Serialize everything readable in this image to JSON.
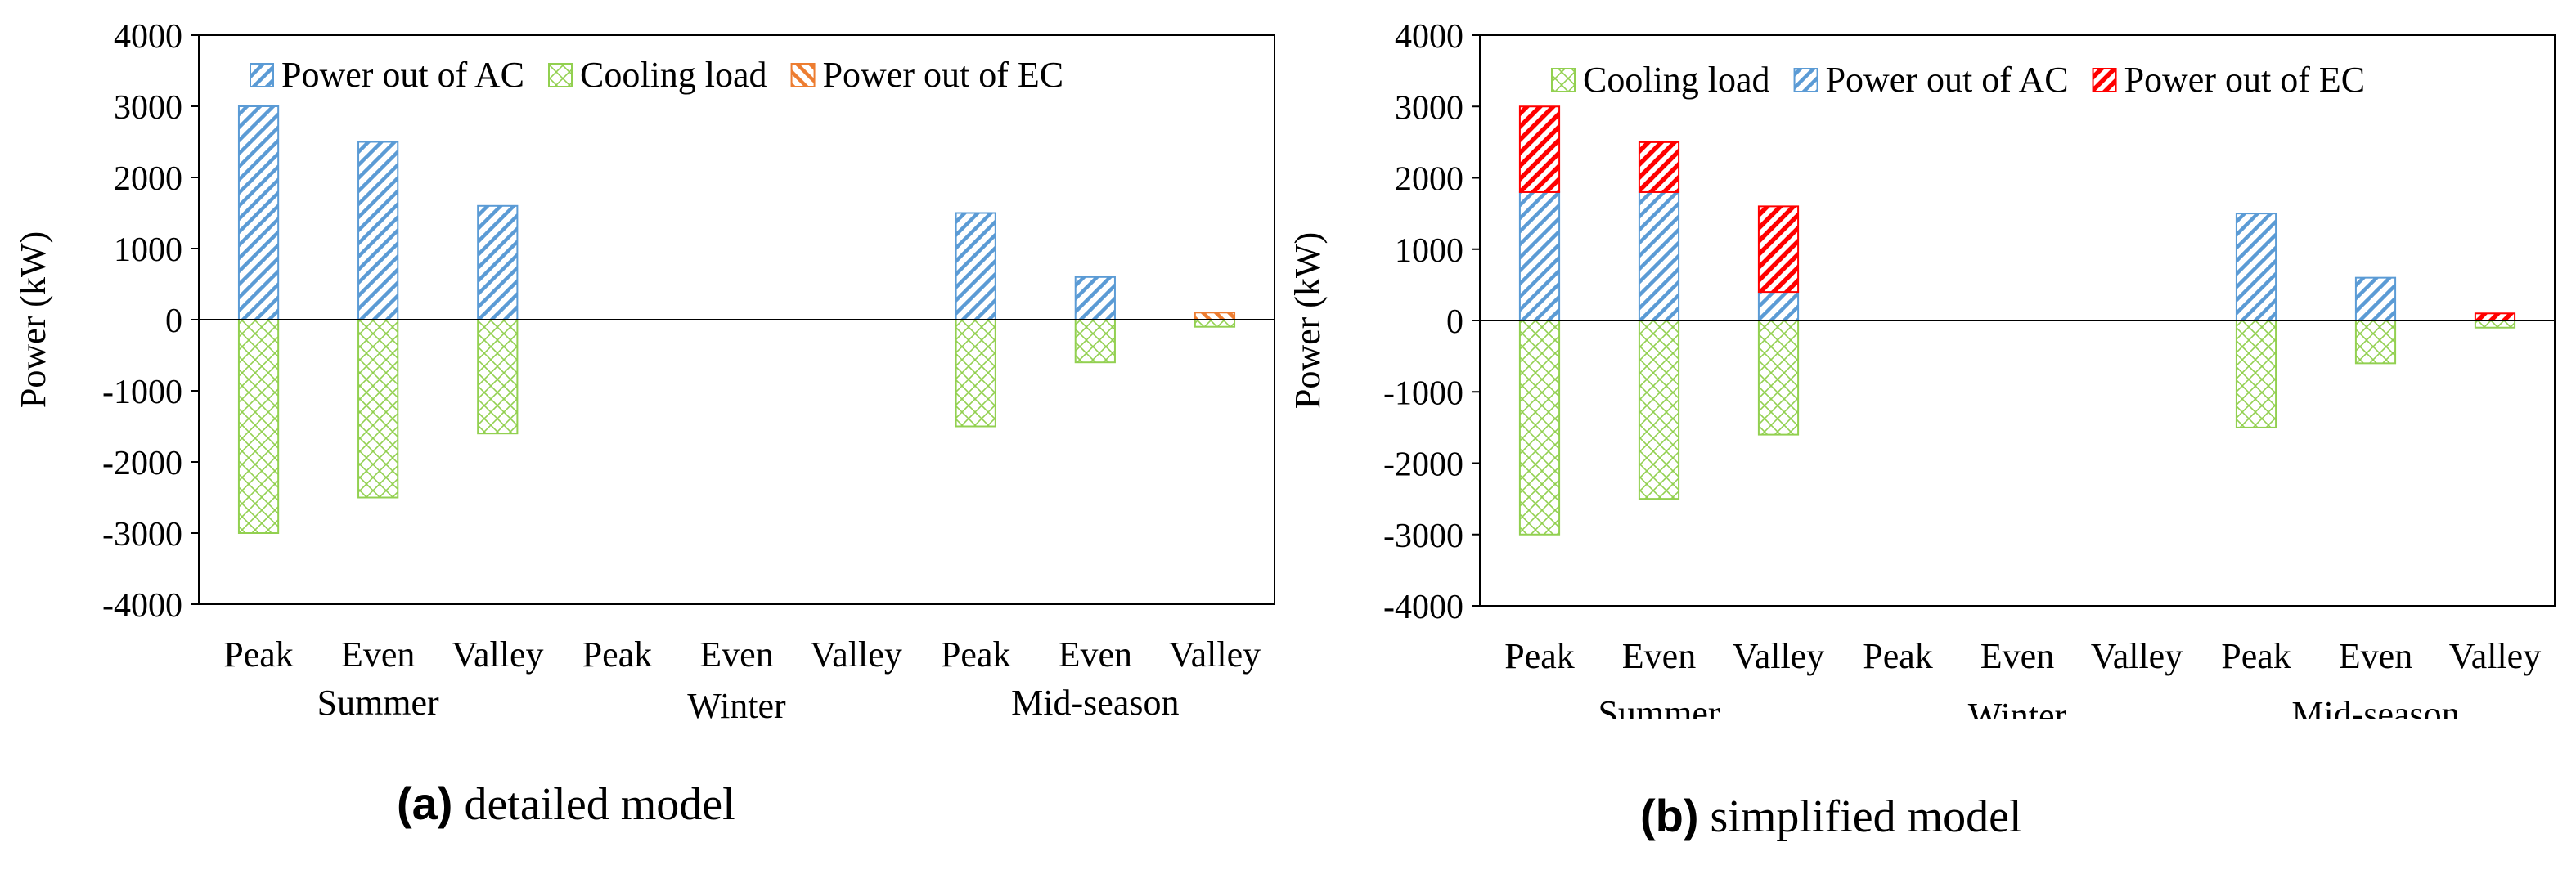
{
  "colors": {
    "power_out_of_ac": "#5b9bd5",
    "cooling_load": "#92d050",
    "power_out_of_ec_detailed": "#ed7d31",
    "power_out_of_ec_simplified": "#ff0000",
    "axis": "#000000"
  },
  "chart_data": [
    {
      "id": "a",
      "type": "bar",
      "stacked": true,
      "caption_letter": "(a)",
      "caption_text": "detailed model",
      "ylabel": "Power (kW)",
      "xlabel": "",
      "ylim": [
        -4000,
        4000
      ],
      "yticks": [
        4000,
        3000,
        2000,
        1000,
        0,
        -1000,
        -2000,
        -3000,
        -4000
      ],
      "grid": false,
      "legend_position": "top",
      "categories": [
        "Peak",
        "Even",
        "Valley",
        "Peak",
        "Even",
        "Valley",
        "Peak",
        "Even",
        "Valley"
      ],
      "groups": [
        "Summer",
        "Winter",
        "Mid-season"
      ],
      "legend": [
        "Power out of AC",
        "Cooling load",
        "Power out of EC"
      ],
      "series": [
        {
          "name": "Power out of AC",
          "pattern": "diag",
          "color_key": "power_out_of_ac",
          "values": [
            3000,
            2500,
            1600,
            0,
            0,
            0,
            1500,
            600,
            0
          ]
        },
        {
          "name": "Cooling load",
          "pattern": "cross",
          "color_key": "cooling_load",
          "values": [
            -3000,
            -2500,
            -1600,
            0,
            0,
            0,
            -1500,
            -600,
            -100
          ]
        },
        {
          "name": "Power out of EC",
          "pattern": "backdiag",
          "color_key": "power_out_of_ec_detailed",
          "values": [
            0,
            0,
            0,
            0,
            0,
            0,
            0,
            0,
            100
          ]
        }
      ]
    },
    {
      "id": "b",
      "type": "bar",
      "stacked": true,
      "caption_letter": "(b)",
      "caption_text": "simplified model",
      "ylabel": "Power (kW)",
      "xlabel": "",
      "ylim": [
        -4000,
        4000
      ],
      "yticks": [
        4000,
        3000,
        2000,
        1000,
        0,
        -1000,
        -2000,
        -3000,
        -4000
      ],
      "grid": false,
      "legend_position": "top",
      "categories": [
        "Peak",
        "Even",
        "Valley",
        "Peak",
        "Even",
        "Valley",
        "Peak",
        "Even",
        "Valley"
      ],
      "groups": [
        "Summer",
        "Winter",
        "Mid-season"
      ],
      "legend": [
        "Cooling load",
        "Power out of AC",
        "Power out of EC"
      ],
      "series": [
        {
          "name": "Cooling load",
          "pattern": "cross",
          "color_key": "cooling_load",
          "values": [
            -3000,
            -2500,
            -1600,
            0,
            0,
            0,
            -1500,
            -600,
            -100
          ]
        },
        {
          "name": "Power out of AC",
          "pattern": "diag",
          "color_key": "power_out_of_ac",
          "values": [
            1800,
            1800,
            400,
            0,
            0,
            0,
            1500,
            600,
            0
          ]
        },
        {
          "name": "Power out of EC",
          "pattern": "diag-bold",
          "color_key": "power_out_of_ec_simplified",
          "values": [
            1200,
            700,
            1200,
            0,
            0,
            0,
            0,
            0,
            100
          ]
        }
      ]
    }
  ]
}
